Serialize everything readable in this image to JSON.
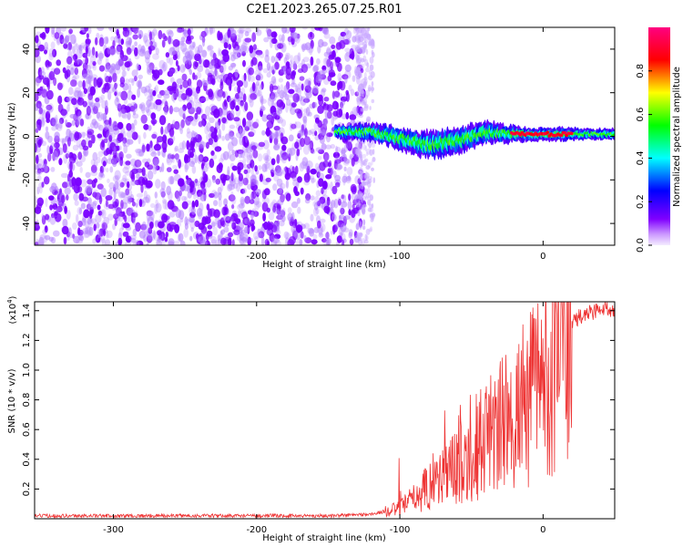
{
  "title": "C2E1.2023.265.07.25.R01",
  "chart_data": [
    {
      "type": "heatmap",
      "xlabel": "Height of straight line (km)",
      "ylabel": "Frequency (Hz)",
      "xlim": [
        -355,
        50
      ],
      "ylim": [
        -50,
        50
      ],
      "x_ticks": [
        -300,
        -200,
        -100,
        0
      ],
      "y_ticks": [
        -40,
        -20,
        0,
        20,
        40
      ],
      "x_tick_labels": [
        "-300",
        "-200",
        "-100",
        "0"
      ],
      "y_tick_labels": [
        "-40",
        "-20",
        "0",
        "20",
        "40"
      ],
      "colorbar": {
        "label": "Normalized spectral amplitude",
        "range": [
          0,
          1
        ],
        "ticks": [
          0,
          0.2,
          0.4,
          0.6,
          0.8
        ],
        "tick_labels": [
          "0.0",
          "0.2",
          "0.4",
          "0.6",
          "0.8"
        ],
        "colormap": [
          "#e8d8ff",
          "#8000ff",
          "#0000ff",
          "#00ffff",
          "#00ff00",
          "#ffff00",
          "#ff0000",
          "#ff0080"
        ]
      },
      "noise_region": {
        "x_range": [
          -355,
          -125
        ],
        "y_range": [
          -50,
          50
        ],
        "amplitude_range": [
          0.0,
          0.25
        ]
      },
      "signal_track": [
        {
          "x": -145,
          "y": 2,
          "width_hz": 6
        },
        {
          "x": -120,
          "y": 2,
          "width_hz": 8
        },
        {
          "x": -100,
          "y": -1,
          "width_hz": 10
        },
        {
          "x": -80,
          "y": -4,
          "width_hz": 12
        },
        {
          "x": -60,
          "y": -2,
          "width_hz": 12
        },
        {
          "x": -40,
          "y": 2,
          "width_hz": 10
        },
        {
          "x": -25,
          "y": 1,
          "width_hz": 8
        },
        {
          "x": -10,
          "y": 1,
          "width_hz": 6
        },
        {
          "x": 10,
          "y": 1,
          "width_hz": 6
        },
        {
          "x": 30,
          "y": 1,
          "width_hz": 5
        },
        {
          "x": 50,
          "y": 1,
          "width_hz": 5
        }
      ],
      "peak_segment": {
        "x_range": [
          -22,
          20
        ],
        "y": 1,
        "amplitude": 0.95
      }
    },
    {
      "type": "line",
      "xlabel": "Height of straight line (km)",
      "ylabel": "SNR (10 * v/v)",
      "scale_label": "(x10",
      "scale_exponent": "4",
      "scale_suffix": ")",
      "xlim": [
        -355,
        50
      ],
      "ylim": [
        0,
        1.46
      ],
      "x_ticks": [
        -300,
        -200,
        -100,
        0
      ],
      "y_ticks": [
        0.2,
        0.4,
        0.6,
        0.8,
        1.0,
        1.2,
        1.4
      ],
      "x_tick_labels": [
        "-300",
        "-200",
        "-100",
        "0"
      ],
      "y_tick_labels": [
        "0.2",
        "0.4",
        "0.6",
        "0.8",
        "1.0",
        "1.2",
        "1.4"
      ],
      "color": "#ee3333",
      "series": [
        {
          "x": [
            -355,
            -300,
            -250,
            -200,
            -150,
            -120,
            -100,
            -90,
            -80,
            -70,
            -60,
            -50,
            -40,
            -30,
            -20,
            -10,
            0,
            10,
            20,
            30,
            40,
            50
          ],
          "y": [
            0.02,
            0.02,
            0.02,
            0.02,
            0.02,
            0.03,
            0.07,
            0.14,
            0.22,
            0.3,
            0.36,
            0.44,
            0.54,
            0.62,
            0.68,
            0.8,
            0.98,
            1.18,
            1.32,
            1.38,
            1.41,
            1.42
          ]
        }
      ]
    }
  ]
}
